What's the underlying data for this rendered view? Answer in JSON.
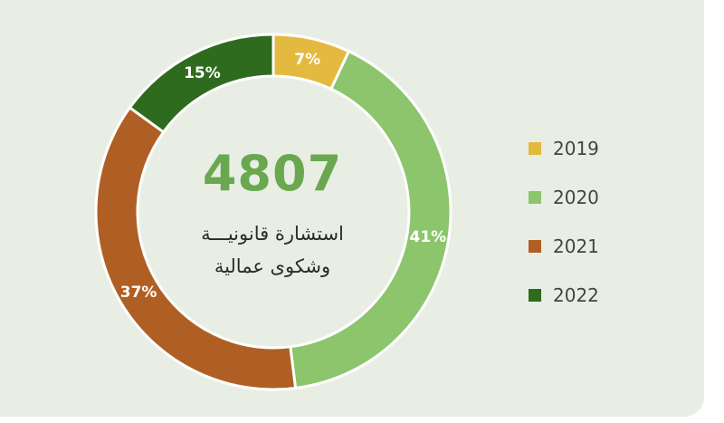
{
  "chart_data": {
    "type": "pie",
    "center_value": "4807",
    "center_label_lines": [
      "استشارة قانونيـــة",
      "وشكوى عمالية"
    ],
    "categories": [
      "2019",
      "2020",
      "2021",
      "2022"
    ],
    "values": [
      7,
      41,
      37,
      15
    ],
    "labels": [
      "7%",
      "41%",
      "37%",
      "15%"
    ],
    "colors": [
      "#e4b93f",
      "#8cc56c",
      "#b05f24",
      "#2e6b1f"
    ],
    "legend_position": "right"
  }
}
